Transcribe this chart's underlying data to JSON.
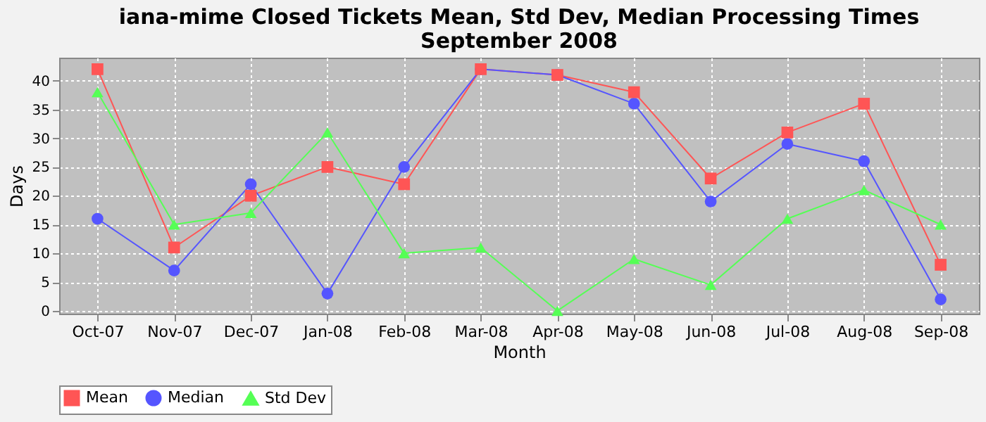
{
  "chart_data": {
    "type": "line",
    "title": "iana-mime Closed Tickets Mean, Std Dev, Median Processing Times\nSeptember 2008",
    "xlabel": "Month",
    "ylabel": "Days",
    "categories": [
      "Oct-07",
      "Nov-07",
      "Dec-07",
      "Jan-08",
      "Feb-08",
      "Mar-08",
      "Apr-08",
      "May-08",
      "Jun-08",
      "Jul-08",
      "Aug-08",
      "Sep-08"
    ],
    "series": [
      {
        "name": "Mean",
        "color": "#ff5555",
        "marker": "square",
        "values": [
          42,
          11,
          20,
          25,
          22,
          42,
          41,
          38,
          23,
          31,
          36,
          8
        ]
      },
      {
        "name": "Median",
        "color": "#5555ff",
        "marker": "circle",
        "values": [
          16,
          7,
          22,
          3,
          25,
          42,
          41,
          36,
          19,
          29,
          26,
          2
        ]
      },
      {
        "name": "Std Dev",
        "color": "#55ff55",
        "marker": "triangle",
        "values": [
          38,
          15,
          17,
          31,
          10,
          11,
          0,
          9,
          4.5,
          16,
          21,
          15
        ]
      }
    ],
    "ylim": [
      -0.5,
      44
    ],
    "yticks": [
      0,
      5,
      10,
      15,
      20,
      25,
      30,
      35,
      40
    ],
    "grid": true,
    "legend": "bottom",
    "line_style": "solid"
  }
}
